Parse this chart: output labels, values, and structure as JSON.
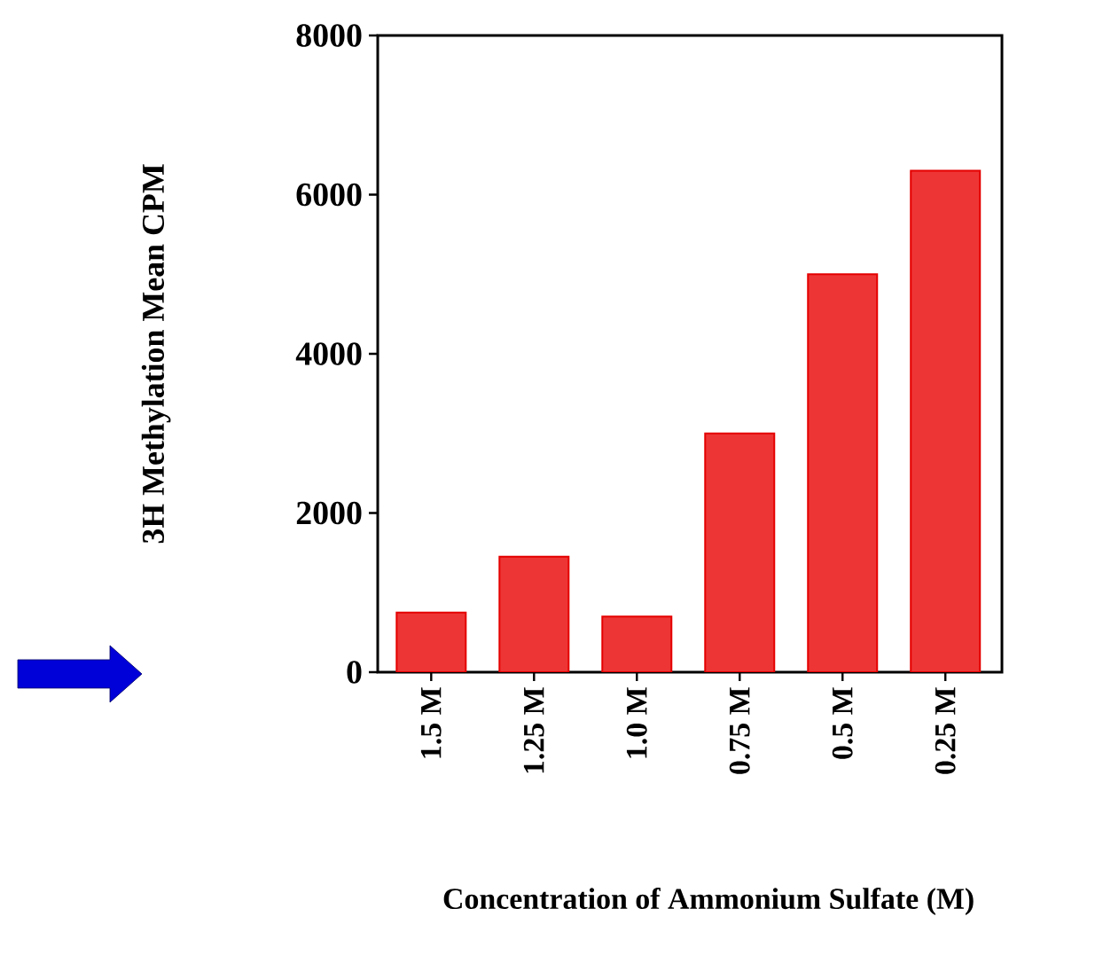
{
  "chart_data": {
    "type": "bar",
    "xlabel": "Concentration of Ammonium Sulfate (M)",
    "ylabel": "3H Methylation  Mean CPM",
    "categories": [
      "1.5 M",
      "1.25 M",
      "1.0 M",
      "0.75 M",
      "0.5 M",
      "0.25 M"
    ],
    "values": [
      750,
      1450,
      700,
      3000,
      5000,
      6300
    ],
    "color": "#ee3535",
    "ylim": [
      0,
      8000
    ],
    "yticks": [
      0,
      2000,
      4000,
      6000,
      8000
    ],
    "grid": false
  }
}
